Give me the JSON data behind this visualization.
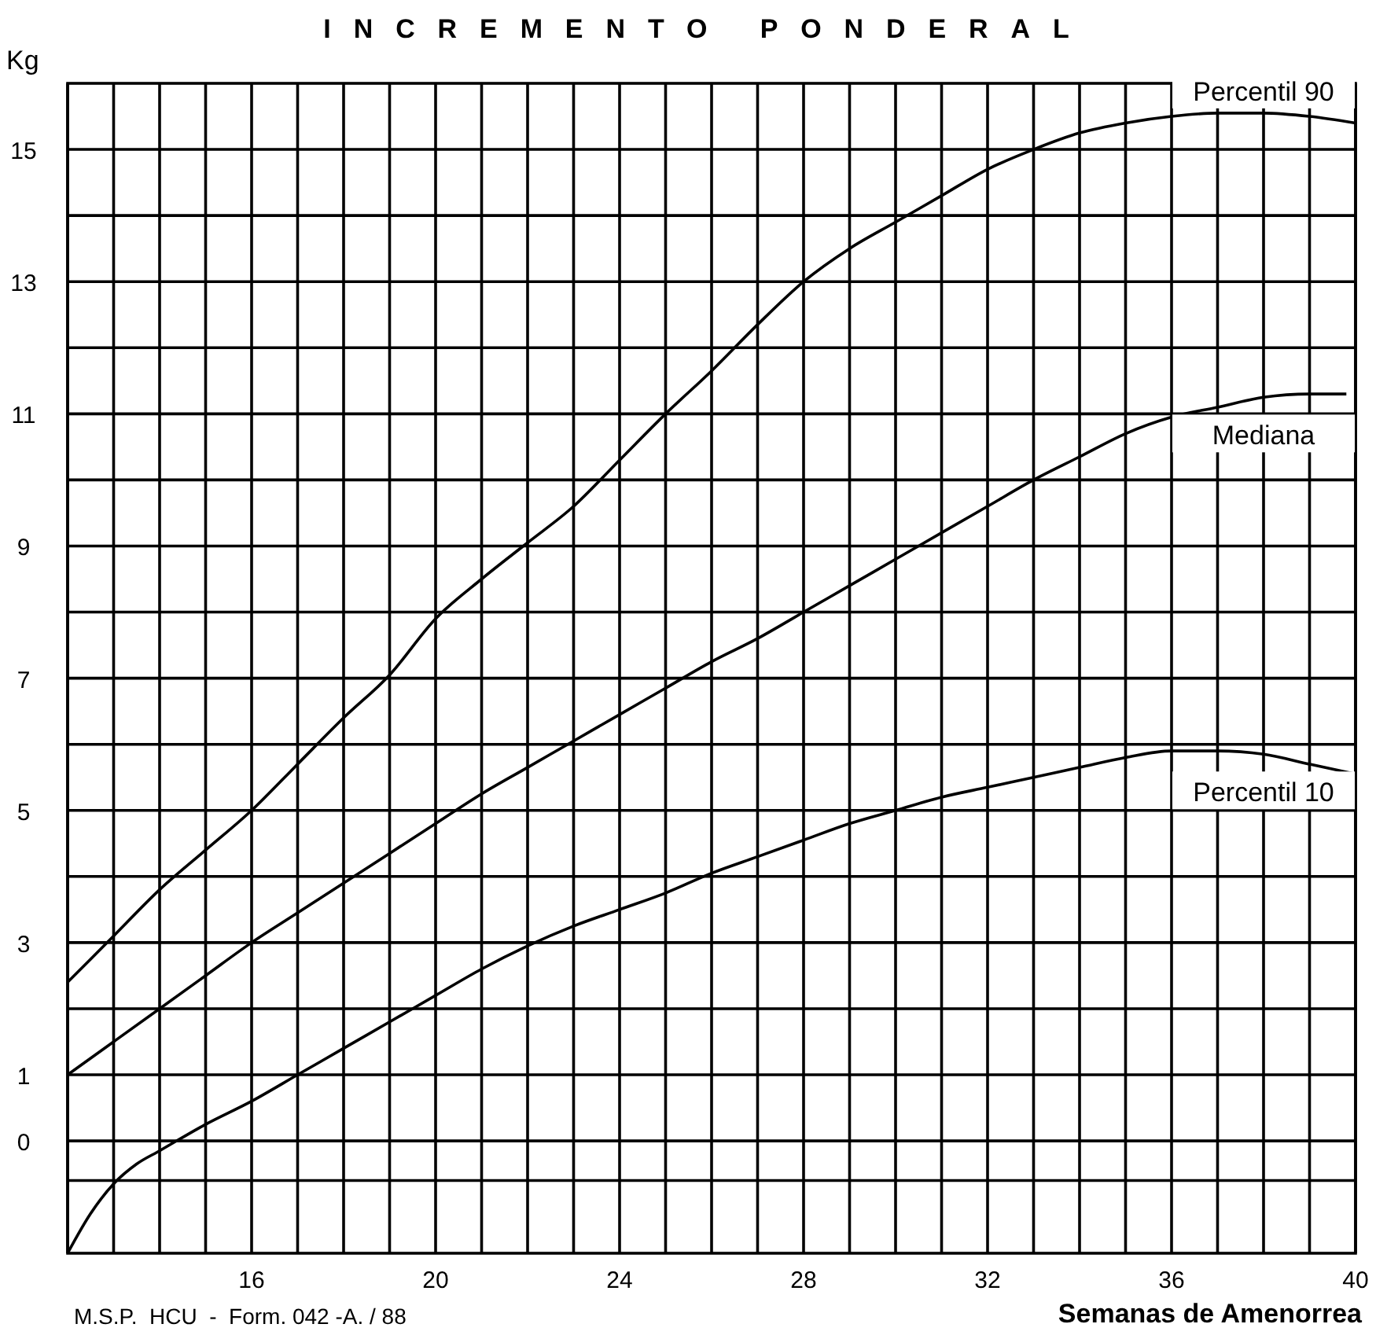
{
  "chart_data": {
    "type": "line",
    "title": "INCREMENTO PONDERAL",
    "xlabel": "Semanas de Amenorrea",
    "ylabel": "Kg",
    "annotations": [
      "M.S.P.  HCU  -  Form. 042 -A. / 88"
    ],
    "xlim": [
      12,
      40
    ],
    "ylim": [
      -1.7,
      16
    ],
    "xticks": [
      {
        "value": 12,
        "label": null
      },
      {
        "value": 13,
        "label": null
      },
      {
        "value": 14,
        "label": null
      },
      {
        "value": 15,
        "label": null
      },
      16,
      {
        "value": 17,
        "label": null
      },
      {
        "value": 18,
        "label": null
      },
      {
        "value": 19,
        "label": null
      },
      20,
      {
        "value": 21,
        "label": null
      },
      {
        "value": 22,
        "label": null
      },
      {
        "value": 23,
        "label": null
      },
      24,
      {
        "value": 25,
        "label": null
      },
      {
        "value": 26,
        "label": null
      },
      {
        "value": 27,
        "label": null
      },
      28,
      {
        "value": 29,
        "label": null
      },
      {
        "value": 30,
        "label": null
      },
      {
        "value": 31,
        "label": null
      },
      32,
      {
        "value": 33,
        "label": null
      },
      {
        "value": 34,
        "label": null
      },
      {
        "value": 35,
        "label": null
      },
      36,
      {
        "value": 37,
        "label": null
      },
      {
        "value": 38,
        "label": null
      },
      {
        "value": 39,
        "label": null
      },
      40
    ],
    "yticks": [
      {
        "value": -0.6,
        "label": null
      },
      0,
      1,
      {
        "value": 2,
        "label": null
      },
      3,
      {
        "value": 4,
        "label": null
      },
      5,
      {
        "value": 6,
        "label": null
      },
      7,
      {
        "value": 8,
        "label": null
      },
      9,
      {
        "value": 10,
        "label": null
      },
      11,
      {
        "value": 12,
        "label": null
      },
      13,
      {
        "value": 14,
        "label": null
      },
      15
    ],
    "grid": true,
    "marker": "none",
    "line_style": "solid",
    "series": [
      {
        "name": "Percentil 90",
        "color": "#000000",
        "x": [
          12,
          13,
          14,
          15,
          16,
          17,
          18,
          19,
          20,
          21,
          22,
          23,
          24,
          25,
          26,
          27,
          28,
          29,
          30,
          31,
          32,
          33,
          34,
          35,
          36,
          37,
          38,
          39,
          40
        ],
        "values": [
          2.4,
          3.1,
          3.8,
          4.4,
          5.0,
          5.7,
          6.4,
          7.05,
          7.9,
          8.5,
          9.05,
          9.6,
          10.3,
          11.0,
          11.65,
          12.35,
          13.0,
          13.5,
          13.9,
          14.3,
          14.7,
          15.0,
          15.25,
          15.4,
          15.5,
          15.55,
          15.55,
          15.5,
          15.4
        ]
      },
      {
        "name": "Mediana",
        "color": "#000000",
        "x": [
          12,
          13,
          14,
          15,
          16,
          17,
          18,
          19,
          20,
          21,
          22,
          23,
          24,
          25,
          26,
          27,
          28,
          29,
          30,
          31,
          32,
          33,
          34,
          35,
          36,
          37,
          38,
          39,
          39.8
        ],
        "values": [
          1.0,
          1.5,
          2.0,
          2.5,
          3.0,
          3.45,
          3.9,
          4.35,
          4.8,
          5.25,
          5.65,
          6.05,
          6.45,
          6.85,
          7.25,
          7.6,
          8.0,
          8.4,
          8.8,
          9.2,
          9.6,
          10.0,
          10.35,
          10.7,
          10.95,
          11.1,
          11.25,
          11.3,
          11.3
        ]
      },
      {
        "name": "Percentil 10",
        "color": "#000000",
        "x": [
          12,
          12.5,
          13,
          13.5,
          14,
          15,
          16,
          17,
          18,
          19,
          20,
          21,
          22,
          23,
          24,
          25,
          26,
          27,
          28,
          29,
          30,
          31,
          32,
          33,
          34,
          35,
          36,
          37,
          38,
          39,
          40
        ],
        "values": [
          -1.7,
          -1.1,
          -0.65,
          -0.35,
          -0.15,
          0.25,
          0.6,
          1.0,
          1.4,
          1.8,
          2.2,
          2.6,
          2.95,
          3.25,
          3.5,
          3.75,
          4.05,
          4.3,
          4.55,
          4.8,
          5.0,
          5.2,
          5.35,
          5.5,
          5.65,
          5.8,
          5.9,
          5.9,
          5.85,
          5.7,
          5.55
        ]
      }
    ]
  }
}
